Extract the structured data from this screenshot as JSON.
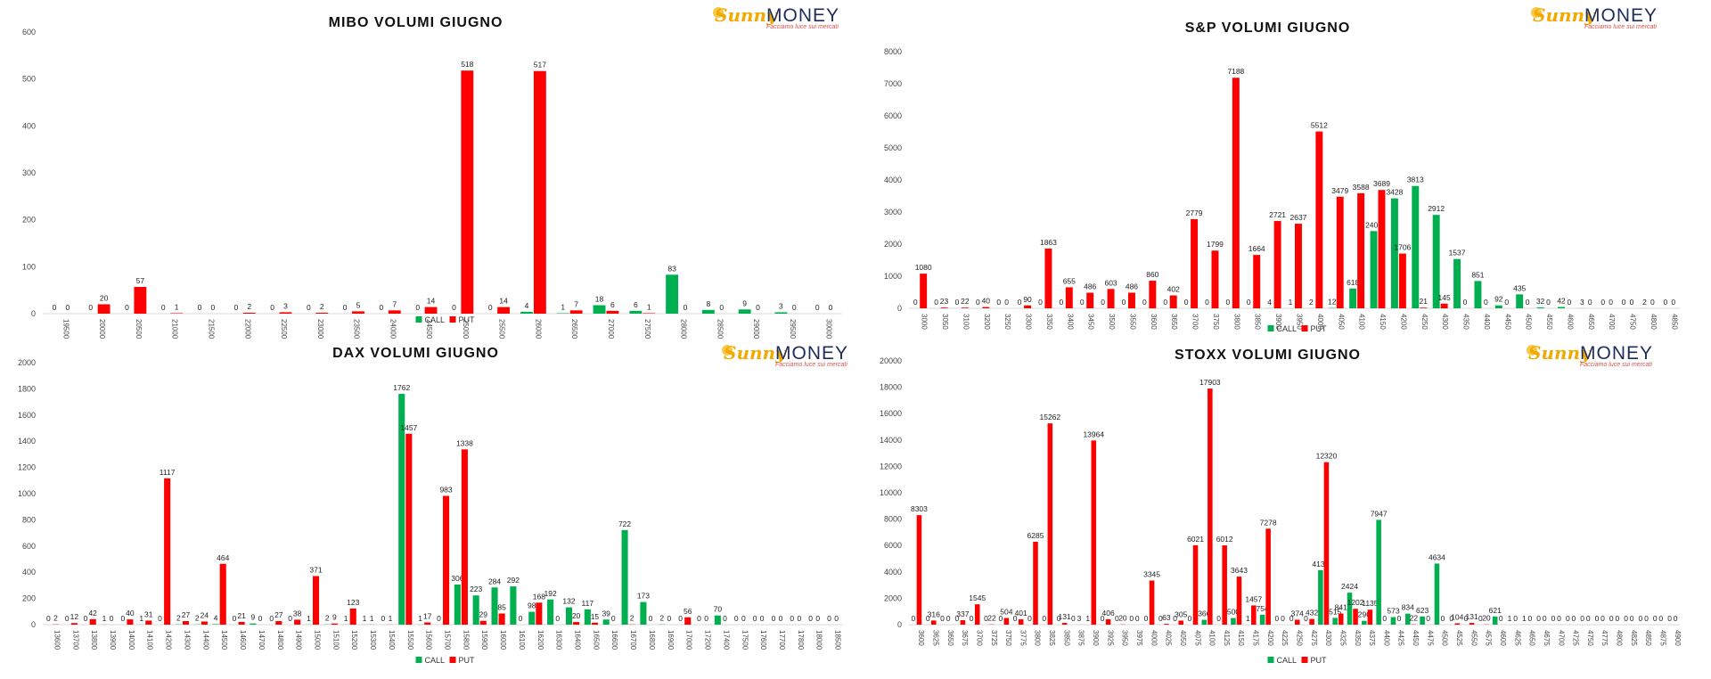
{
  "colors": {
    "call": "#00b050",
    "put": "#ff0000"
  },
  "logo": {
    "part1": "Sunny",
    "part2": "MONEY",
    "tagline": "Facciamo luce sui mercati"
  },
  "chart_data": [
    {
      "type": "bar",
      "title": "MIBO VOLUMI GIUGNO",
      "ylim": [
        0,
        600
      ],
      "yticks": [
        0,
        100,
        200,
        300,
        400,
        500,
        600
      ],
      "categories": [
        "19500",
        "20000",
        "20500",
        "21000",
        "21500",
        "22000",
        "22500",
        "23000",
        "23500",
        "24000",
        "24500",
        "25000",
        "25500",
        "26000",
        "26500",
        "27000",
        "27500",
        "28000",
        "28500",
        "29000",
        "29500",
        "30000"
      ],
      "series": [
        {
          "name": "CALL",
          "values": [
            0,
            0,
            0,
            0,
            0,
            0,
            0,
            0,
            0,
            0,
            0,
            0,
            0,
            4,
            1,
            18,
            6,
            83,
            8,
            9,
            3,
            0
          ]
        },
        {
          "name": "PUT",
          "values": [
            0,
            20,
            57,
            1,
            0,
            2,
            3,
            2,
            5,
            7,
            14,
            518,
            14,
            517,
            7,
            6,
            1,
            0,
            0,
            0,
            0,
            0
          ]
        }
      ],
      "legend": "bottom"
    },
    {
      "type": "bar",
      "title": "S&P VOLUMI GIUGNO",
      "ylim": [
        0,
        8000
      ],
      "yticks": [
        0,
        1000,
        2000,
        3000,
        4000,
        5000,
        6000,
        7000,
        8000
      ],
      "categories": [
        "3000",
        "3050",
        "3100",
        "3200",
        "3250",
        "3300",
        "3350",
        "3400",
        "3450",
        "3500",
        "3550",
        "3600",
        "3650",
        "3700",
        "3750",
        "3800",
        "3850",
        "3900",
        "3950",
        "4000",
        "4050",
        "4100",
        "4150",
        "4200",
        "4250",
        "4300",
        "4350",
        "4400",
        "4450",
        "4500",
        "4550",
        "4600",
        "4650",
        "4700",
        "4750",
        "4800",
        "4850"
      ],
      "series": [
        {
          "name": "CALL",
          "values": [
            0,
            0,
            0,
            0,
            0,
            0,
            0,
            0,
            0,
            0,
            0,
            0,
            0,
            0,
            0,
            0,
            0,
            4,
            1,
            2,
            12,
            618,
            2408,
            3428,
            3813,
            2912,
            1537,
            851,
            92,
            435,
            32,
            42,
            3,
            0,
            0,
            2,
            0
          ]
        },
        {
          "name": "PUT",
          "values": [
            1080,
            23,
            22,
            40,
            0,
            90,
            1863,
            655,
            486,
            603,
            486,
            860,
            402,
            2779,
            1799,
            7188,
            1664,
            2721,
            2637,
            5512,
            3479,
            3588,
            3689,
            1706,
            21,
            145,
            0,
            0,
            0,
            0,
            0,
            0,
            0,
            0,
            0,
            0,
            0
          ]
        }
      ],
      "legend": "bottom"
    },
    {
      "type": "bar",
      "title": "DAX VOLUMI GIUGNO",
      "ylim": [
        0,
        2000
      ],
      "yticks": [
        0,
        200,
        400,
        600,
        800,
        1000,
        1200,
        1400,
        1600,
        1800,
        2000
      ],
      "categories": [
        "13600",
        "13700",
        "13800",
        "13900",
        "14000",
        "14100",
        "14200",
        "14300",
        "14400",
        "14500",
        "14600",
        "14700",
        "14800",
        "14900",
        "15000",
        "15100",
        "15200",
        "15300",
        "15400",
        "15500",
        "15600",
        "15700",
        "15800",
        "15900",
        "16000",
        "16100",
        "16200",
        "16300",
        "16400",
        "16500",
        "16600",
        "16700",
        "16800",
        "16900",
        "17000",
        "17200",
        "17400",
        "17500",
        "17600",
        "17700",
        "17800",
        "18000",
        "18500"
      ],
      "series": [
        {
          "name": "CALL",
          "values": [
            0,
            0,
            0,
            1,
            0,
            1,
            0,
            2,
            2,
            4,
            0,
            9,
            0,
            0,
            1,
            2,
            1,
            1,
            0,
            1762,
            1,
            0,
            306,
            223,
            284,
            292,
            98,
            192,
            132,
            117,
            39,
            722,
            173,
            2,
            0,
            0,
            70,
            0,
            0,
            0,
            0,
            0,
            0
          ]
        },
        {
          "name": "PUT",
          "values": [
            2,
            12,
            42,
            0,
            40,
            31,
            1117,
            27,
            24,
            464,
            21,
            0,
            27,
            38,
            371,
            9,
            123,
            1,
            1,
            1457,
            17,
            983,
            1338,
            29,
            85,
            0,
            168,
            0,
            20,
            15,
            0,
            2,
            0,
            0,
            56,
            0,
            0,
            0,
            0,
            0,
            0,
            0,
            0
          ]
        }
      ],
      "legend": "bottom"
    },
    {
      "type": "bar",
      "title": "STOXX VOLUMI GIUGNO",
      "ylim": [
        0,
        20000
      ],
      "yticks": [
        0,
        2000,
        4000,
        6000,
        8000,
        10000,
        12000,
        14000,
        16000,
        18000,
        20000
      ],
      "categories": [
        "3600",
        "3625",
        "3650",
        "3675",
        "3700",
        "3725",
        "3750",
        "3775",
        "3800",
        "3825",
        "3850",
        "3875",
        "3900",
        "3925",
        "3950",
        "3975",
        "4000",
        "4025",
        "4050",
        "4075",
        "4100",
        "4125",
        "4150",
        "4175",
        "4200",
        "4225",
        "4250",
        "4275",
        "4300",
        "4325",
        "4350",
        "4375",
        "4400",
        "4425",
        "4450",
        "4475",
        "4500",
        "4525",
        "4550",
        "4575",
        "4600",
        "4625",
        "4650",
        "4675",
        "4700",
        "4725",
        "4750",
        "4775",
        "4800",
        "4825",
        "4850",
        "4875",
        "4900"
      ],
      "series": [
        {
          "name": "CALL",
          "values": [
            0,
            0,
            0,
            0,
            0,
            0,
            0,
            0,
            0,
            0,
            0,
            0,
            1,
            0,
            0,
            0,
            0,
            0,
            0,
            0,
            366,
            0,
            500,
            1,
            754,
            0,
            0,
            0,
            4134,
            515,
            2424,
            290,
            7947,
            573,
            834,
            623,
            4634,
            0,
            0,
            0,
            621,
            1,
            1,
            0,
            0,
            0,
            0,
            0,
            0,
            0,
            0,
            0,
            0
          ]
        },
        {
          "name": "PUT",
          "values": [
            8303,
            316,
            0,
            337,
            1545,
            22,
            504,
            401,
            6285,
            15262,
            131,
            3,
            13964,
            406,
            20,
            0,
            3345,
            63,
            305,
            6021,
            17903,
            6012,
            3643,
            1457,
            7278,
            0,
            374,
            432,
            12320,
            841,
            1202,
            1135,
            0,
            0,
            22,
            0,
            0,
            104,
            131,
            20,
            0,
            0,
            0,
            0,
            0,
            0,
            0,
            0,
            0,
            0,
            0,
            0,
            0
          ]
        }
      ],
      "legend": "bottom"
    }
  ]
}
